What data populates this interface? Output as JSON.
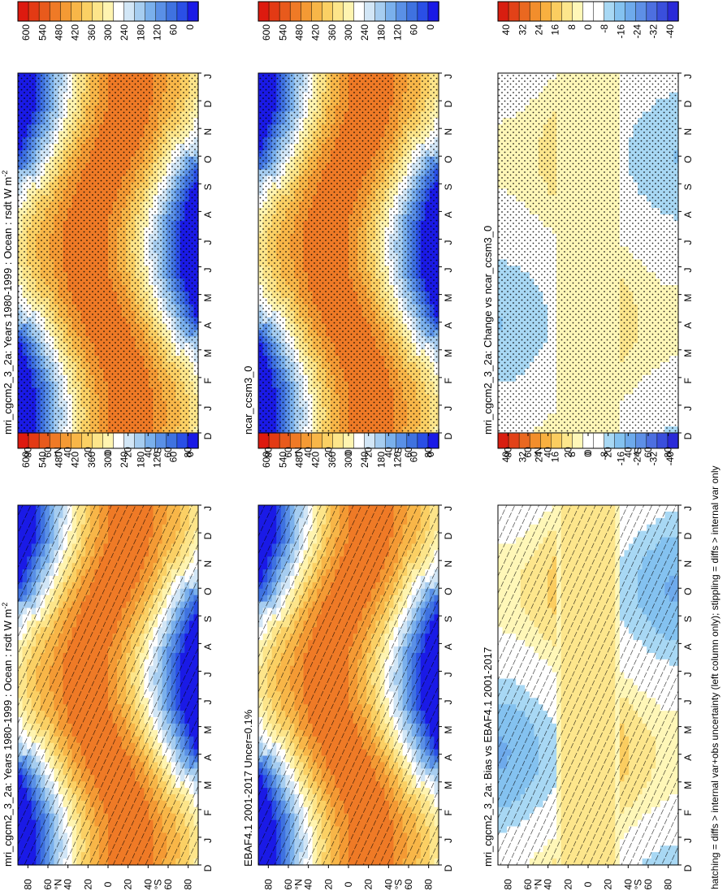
{
  "figure": {
    "footnote": "hatching = diffs > internal var+obs uncertainty (left column only); stippling = diffs > internal var only",
    "colors": {
      "abs_scale": [
        "#1a1ae6",
        "#2a4fe6",
        "#3f72e0",
        "#5a90e6",
        "#7ab0ec",
        "#a6cdf0",
        "#d2e6f6",
        "#ffffff",
        "#fff4b0",
        "#fde58a",
        "#fbd064",
        "#f8b648",
        "#f49a34",
        "#ef7a26",
        "#e85a1c",
        "#e33a14",
        "#dd1a0f"
      ],
      "diff_scale": [
        "#2a2ad8",
        "#3a4fdc",
        "#4d6fe0",
        "#5e8fe6",
        "#6eaaec",
        "#84c2f0",
        "#a8d8f4",
        "#ffffff",
        "#ffffff",
        "#fff7b8",
        "#fde68c",
        "#fbcd60",
        "#f8b040",
        "#f28e2c",
        "#ea6820",
        "#e24218",
        "#d81e10"
      ]
    }
  },
  "chart_data": [
    {
      "id": "left-top",
      "type": "heatmap",
      "title": "mri_cgcm2_3_2a: Years 1980-1999 : Ocean : rsdt W m",
      "title_superscript": "-2",
      "x_ticks": [
        "J",
        "F",
        "M",
        "A",
        "M",
        "J",
        "J",
        "A",
        "S",
        "O",
        "N",
        "D",
        "J"
      ],
      "x_end_left": "D",
      "y_ticks": [
        "80",
        "60",
        "40",
        "20",
        "0",
        "20",
        "40",
        "60",
        "80"
      ],
      "y_hem_n": "°N",
      "y_hem_s": "°S",
      "ylim": [
        -90,
        90
      ],
      "scale": "abs",
      "overlay": "hatching",
      "colorbar_labels": [
        "600",
        "540",
        "480",
        "420",
        "360",
        "300",
        "240",
        "180",
        "120",
        "60",
        "0"
      ]
    },
    {
      "id": "right-top",
      "type": "heatmap",
      "title": "mri_cgcm2_3_2a: Years 1980-1999 : Ocean : rsdt W m",
      "title_superscript": "-2",
      "x_ticks": [
        "J",
        "F",
        "M",
        "A",
        "M",
        "J",
        "J",
        "A",
        "S",
        "O",
        "N",
        "D",
        "J"
      ],
      "x_end_left": "D",
      "y_ticks": [
        "80",
        "60",
        "40",
        "20",
        "0",
        "20",
        "40",
        "60",
        "80"
      ],
      "y_hem_n": "°N",
      "y_hem_s": "°S",
      "ylim": [
        -90,
        90
      ],
      "scale": "abs",
      "overlay": "stippling",
      "colorbar_labels": [
        "600",
        "540",
        "480",
        "420",
        "360",
        "300",
        "240",
        "180",
        "120",
        "60",
        "0"
      ]
    },
    {
      "id": "left-mid",
      "type": "heatmap",
      "title": "EBAF4.1 2001-2017 Uncer=0.1%",
      "title_superscript": "",
      "x_ticks": [
        "J",
        "F",
        "M",
        "A",
        "M",
        "J",
        "J",
        "A",
        "S",
        "O",
        "N",
        "D",
        "J"
      ],
      "x_end_left": "D",
      "y_ticks": [
        "80",
        "60",
        "40",
        "20",
        "0",
        "20",
        "40",
        "60",
        "80"
      ],
      "y_hem_n": "°N",
      "y_hem_s": "°S",
      "ylim": [
        -90,
        90
      ],
      "scale": "abs",
      "overlay": "hatching",
      "colorbar_labels": [
        "600",
        "540",
        "480",
        "420",
        "360",
        "300",
        "240",
        "180",
        "120",
        "60",
        "0"
      ]
    },
    {
      "id": "right-mid",
      "type": "heatmap",
      "title": "ncar_ccsm3_0",
      "title_superscript": "",
      "x_ticks": [
        "J",
        "F",
        "M",
        "A",
        "M",
        "J",
        "J",
        "A",
        "S",
        "O",
        "N",
        "D",
        "J"
      ],
      "x_end_left": "D",
      "y_ticks": [
        "80",
        "60",
        "40",
        "20",
        "0",
        "20",
        "40",
        "60",
        "80"
      ],
      "y_hem_n": "°N",
      "y_hem_s": "°S",
      "ylim": [
        -90,
        90
      ],
      "scale": "abs",
      "overlay": "stippling",
      "colorbar_labels": [
        "600",
        "540",
        "480",
        "420",
        "360",
        "300",
        "240",
        "180",
        "120",
        "60",
        "0"
      ]
    },
    {
      "id": "left-bot",
      "type": "heatmap",
      "title": "mri_cgcm2_3_2a: Bias vs EBAF4.1 2001-2017",
      "title_superscript": "",
      "x_ticks": [
        "J",
        "F",
        "M",
        "A",
        "M",
        "J",
        "J",
        "A",
        "S",
        "O",
        "N",
        "D",
        "J"
      ],
      "x_end_left": "D",
      "y_ticks": [
        "80",
        "60",
        "40",
        "20",
        "0",
        "20",
        "40",
        "60",
        "80"
      ],
      "y_hem_n": "°N",
      "y_hem_s": "°S",
      "ylim": [
        -90,
        90
      ],
      "scale": "diff",
      "overlay": "hatching",
      "colorbar_labels": [
        "40",
        "32",
        "24",
        "16",
        "8",
        "0",
        "-8",
        "-16",
        "-24",
        "-32",
        "-40"
      ]
    },
    {
      "id": "right-bot",
      "type": "heatmap",
      "title": "mri_cgcm2_3_2a: Change vs ncar_ccsm3_0",
      "title_superscript": "",
      "x_ticks": [
        "J",
        "F",
        "M",
        "A",
        "M",
        "J",
        "J",
        "A",
        "S",
        "O",
        "N",
        "D",
        "J"
      ],
      "x_end_left": "D",
      "y_ticks": [
        "80",
        "60",
        "40",
        "20",
        "0",
        "20",
        "40",
        "60",
        "80"
      ],
      "y_hem_n": "°N",
      "y_hem_s": "°S",
      "ylim": [
        -90,
        90
      ],
      "scale": "diff",
      "overlay": "stippling",
      "colorbar_labels": [
        "40",
        "32",
        "24",
        "16",
        "8",
        "0",
        "-8",
        "-16",
        "-24",
        "-32",
        "-40"
      ]
    }
  ]
}
